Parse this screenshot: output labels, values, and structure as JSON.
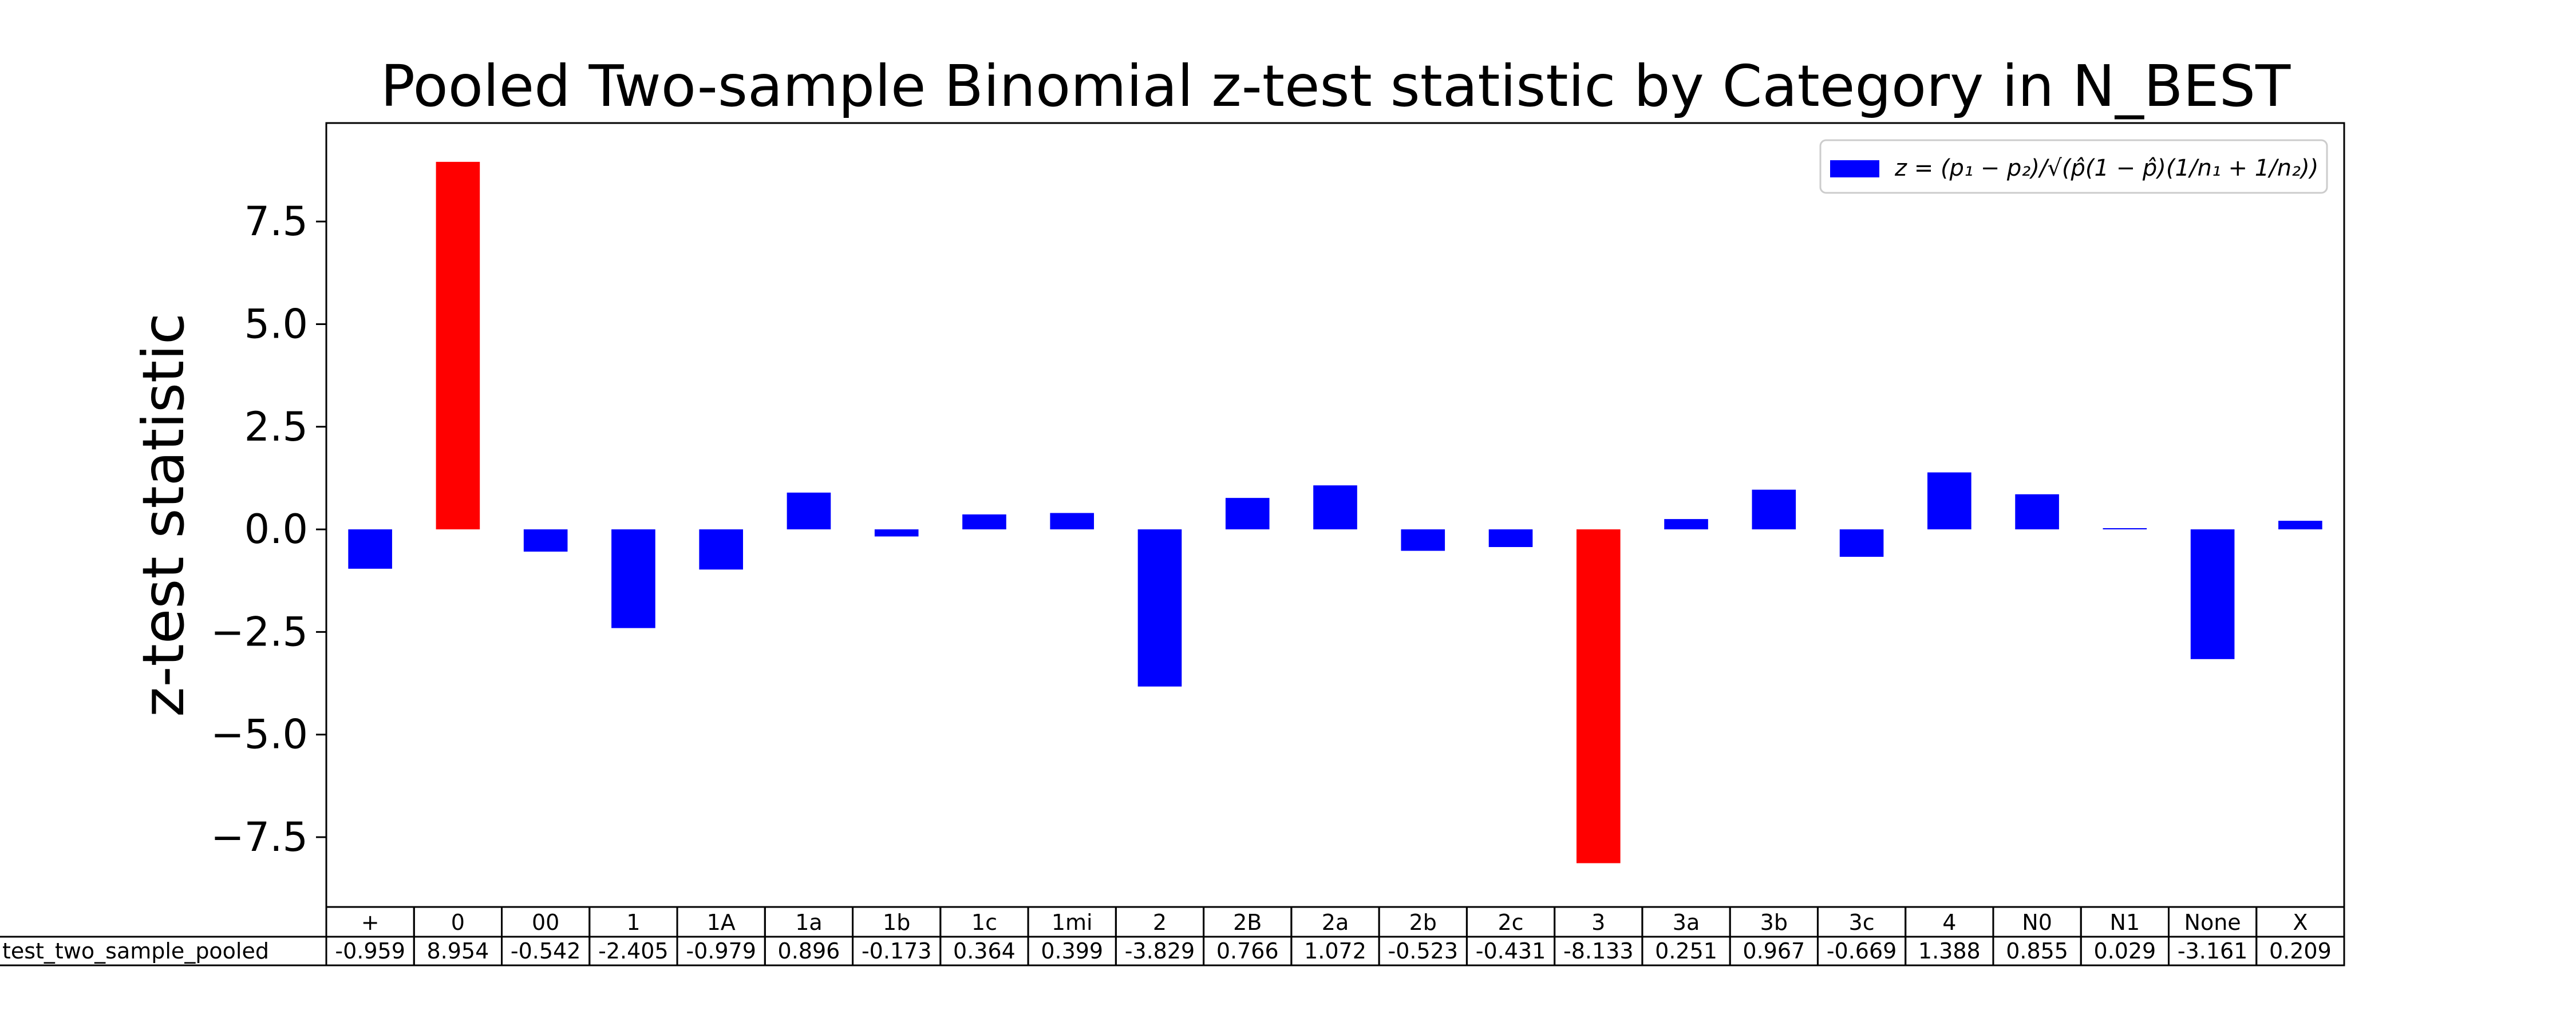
{
  "chart_data": {
    "type": "bar",
    "title": "Pooled Two-sample Binomial z-test statistic by Category in N_BEST",
    "xlabel": "",
    "ylabel": "z-test statistic",
    "ylim": [
      -9.2,
      9.9
    ],
    "yticks": [
      7.5,
      5.0,
      2.5,
      0.0,
      -2.5,
      -5.0,
      -7.5
    ],
    "ytick_labels": [
      "7.5",
      "5.0",
      "2.5",
      "0.0",
      "−2.5",
      "−5.0",
      "−7.5"
    ],
    "grid": false,
    "legend_position": "top-right",
    "legend_label": "z = (p₁ − p₂)/√(p̂(1 − p̂)(1/n₁ + 1/n₂))",
    "row_label": "test_two_sample_pooled",
    "categories": [
      "+",
      "0",
      "00",
      "1",
      "1A",
      "1a",
      "1b",
      "1c",
      "1mi",
      "2",
      "2B",
      "2a",
      "2b",
      "2c",
      "3",
      "3a",
      "3b",
      "3c",
      "4",
      "N0",
      "N1",
      "None",
      "X"
    ],
    "values": [
      -0.959,
      8.954,
      -0.542,
      -2.405,
      -0.979,
      0.896,
      -0.173,
      0.364,
      0.399,
      -3.829,
      0.766,
      1.072,
      -0.523,
      -0.431,
      -8.133,
      0.251,
      0.967,
      -0.669,
      1.388,
      0.855,
      0.029,
      -3.161,
      0.209
    ],
    "value_labels": [
      "-0.959",
      "8.954",
      "-0.542",
      "-2.405",
      "-0.979",
      "0.896",
      "-0.173",
      "0.364",
      "0.399",
      "-3.829",
      "0.766",
      "1.072",
      "-0.523",
      "-0.431",
      "-8.133",
      "0.251",
      "0.967",
      "-0.669",
      "1.388",
      "0.855",
      "0.029",
      "-3.161",
      "0.209"
    ],
    "bar_colors": [
      "#0000ff",
      "#ff0000",
      "#0000ff",
      "#0000ff",
      "#0000ff",
      "#0000ff",
      "#0000ff",
      "#0000ff",
      "#0000ff",
      "#0000ff",
      "#0000ff",
      "#0000ff",
      "#0000ff",
      "#0000ff",
      "#ff0000",
      "#0000ff",
      "#0000ff",
      "#0000ff",
      "#0000ff",
      "#0000ff",
      "#0000ff",
      "#0000ff",
      "#0000ff"
    ],
    "colors": {
      "default": "#0000ff",
      "highlight": "#ff0000"
    }
  }
}
